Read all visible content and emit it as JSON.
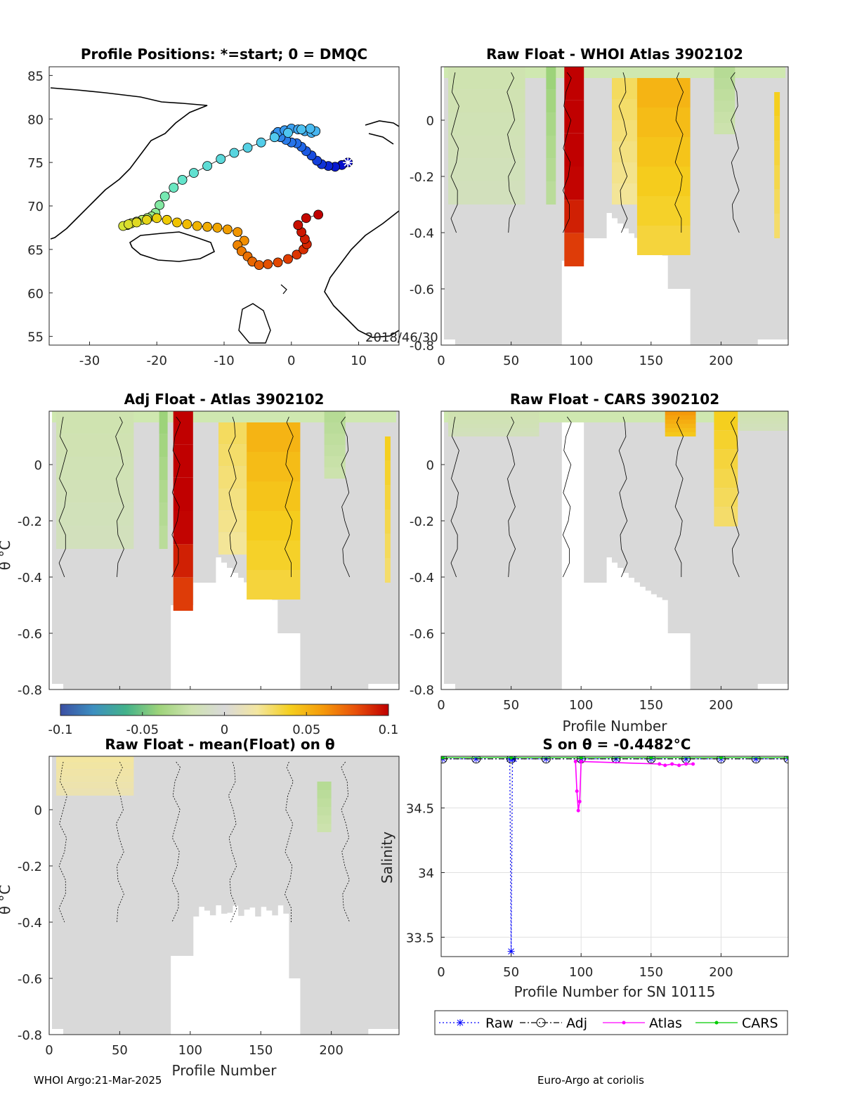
{
  "footer": {
    "left": "WHOI Argo:21-Mar-2025",
    "right": "Euro-Argo at coriolis"
  },
  "chart_data": [
    {
      "id": "map",
      "type": "scatter",
      "title": "Profile Positions: *=start; 0 = DMQC",
      "xlabel": "",
      "ylabel": "",
      "xlim": [
        -36,
        16
      ],
      "ylim": [
        54,
        86
      ],
      "xticks": [
        -30,
        -20,
        -10,
        0,
        10
      ],
      "yticks": [
        55,
        60,
        65,
        70,
        75,
        80,
        85
      ],
      "annotation": "2018/46/30",
      "start_marker": [
        8.4,
        75.0
      ],
      "track": {
        "lon": [
          8.4,
          7.5,
          6.5,
          5.5,
          4.5,
          3.8,
          3.0,
          2.2,
          1.5,
          0.8,
          0.0,
          -0.8,
          -1.6,
          -2.4,
          -2.0,
          -1.0,
          0.0,
          1.0,
          2.0,
          3.0,
          3.6,
          2.8,
          1.5,
          -0.5,
          -2.5,
          -4.5,
          -6.5,
          -8.5,
          -10.5,
          -12.5,
          -14.5,
          -16.2,
          -17.5,
          -18.8,
          -19.6,
          -20.2,
          -20.8,
          -21.4,
          -22.2,
          -23.0,
          -23.8,
          -24.4,
          -25.0,
          -24.2,
          -23.0,
          -21.5,
          -20.0,
          -18.5,
          -17.0,
          -15.5,
          -14.0,
          -12.5,
          -11.0,
          -9.5,
          -8.0,
          -7.0,
          -8.0,
          -7.4,
          -6.5,
          -5.8,
          -4.8,
          -3.5,
          -2.0,
          -0.5,
          0.8,
          1.8,
          2.3,
          2.0,
          1.5,
          1.0,
          2.2,
          4.0
        ],
        "lat": [
          75.0,
          74.7,
          74.5,
          74.6,
          74.8,
          75.2,
          75.8,
          76.3,
          76.8,
          77.2,
          77.3,
          77.6,
          77.9,
          78.2,
          78.5,
          78.7,
          78.9,
          78.8,
          78.6,
          78.4,
          78.6,
          78.9,
          78.8,
          78.4,
          77.9,
          77.3,
          76.7,
          76.1,
          75.4,
          74.6,
          73.8,
          73.0,
          72.1,
          71.1,
          70.1,
          69.2,
          68.8,
          68.6,
          68.4,
          68.2,
          68.0,
          67.8,
          67.7,
          67.9,
          68.1,
          68.4,
          68.6,
          68.4,
          68.1,
          67.9,
          67.7,
          67.6,
          67.5,
          67.3,
          67.0,
          66.0,
          65.5,
          64.8,
          64.2,
          63.6,
          63.2,
          63.3,
          63.5,
          63.9,
          64.4,
          65.0,
          65.6,
          66.2,
          67.0,
          67.8,
          68.6,
          69.0
        ]
      }
    },
    {
      "id": "raw-whoi",
      "type": "heatmap",
      "title": "Raw Float - WHOI Atlas  3902102",
      "xlabel": "",
      "ylabel": "",
      "xlim": [
        0,
        248
      ],
      "ylim": [
        -0.8,
        0.19
      ],
      "xticks": [
        0,
        50,
        100,
        150,
        200
      ],
      "yticks": [
        0,
        -0.2,
        -0.4,
        -0.6,
        -0.8
      ],
      "anomalies": [
        {
          "x": [
            88,
            102
          ],
          "top": 0.19,
          "bottom": -0.52,
          "value": 0.12
        },
        {
          "x": [
            122,
            140
          ],
          "top": 0.15,
          "bottom": -0.3,
          "value": 0.03
        },
        {
          "x": [
            140,
            178
          ],
          "top": 0.15,
          "bottom": -0.48,
          "value": 0.05
        },
        {
          "x": [
            5,
            60
          ],
          "top": 0.19,
          "bottom": -0.3,
          "value": -0.02
        },
        {
          "x": [
            75,
            82
          ],
          "top": 0.19,
          "bottom": -0.3,
          "value": -0.04
        },
        {
          "x": [
            195,
            210
          ],
          "top": 0.19,
          "bottom": -0.05,
          "value": -0.03
        },
        {
          "x": [
            238,
            242
          ],
          "top": 0.1,
          "bottom": -0.42,
          "value": 0.04
        }
      ]
    },
    {
      "id": "adj-atlas",
      "type": "heatmap",
      "title": "Adj Float - Atlas  3902102",
      "xlabel": "",
      "ylabel": "θ °C",
      "xlim": [
        0,
        248
      ],
      "ylim": [
        -0.8,
        0.19
      ],
      "xticks": [],
      "yticks": [
        0,
        -0.2,
        -0.4,
        -0.6,
        -0.8
      ],
      "anomalies": [
        {
          "x": [
            88,
            102
          ],
          "top": 0.19,
          "bottom": -0.52,
          "value": 0.12
        },
        {
          "x": [
            120,
            140
          ],
          "top": 0.15,
          "bottom": -0.32,
          "value": 0.03
        },
        {
          "x": [
            140,
            178
          ],
          "top": 0.15,
          "bottom": -0.48,
          "value": 0.05
        },
        {
          "x": [
            5,
            60
          ],
          "top": 0.19,
          "bottom": -0.3,
          "value": -0.02
        },
        {
          "x": [
            78,
            84
          ],
          "top": 0.19,
          "bottom": -0.3,
          "value": -0.04
        },
        {
          "x": [
            195,
            210
          ],
          "top": 0.19,
          "bottom": -0.05,
          "value": -0.03
        },
        {
          "x": [
            238,
            242
          ],
          "top": 0.1,
          "bottom": -0.42,
          "value": 0.04
        }
      ]
    },
    {
      "id": "raw-cars",
      "type": "heatmap",
      "title": "Raw Float - CARS  3902102",
      "xlabel": "Profile Number",
      "ylabel": "",
      "xlim": [
        0,
        248
      ],
      "ylim": [
        -0.8,
        0.19
      ],
      "xticks": [
        0,
        50,
        100,
        150,
        200
      ],
      "yticks": [
        0,
        -0.2,
        -0.4,
        -0.6,
        -0.8
      ],
      "anomalies": [
        {
          "x": [
            160,
            182
          ],
          "top": 0.19,
          "bottom": 0.1,
          "value": 0.06
        },
        {
          "x": [
            195,
            212
          ],
          "top": 0.19,
          "bottom": -0.22,
          "value": 0.04
        },
        {
          "x": [
            5,
            70
          ],
          "top": 0.19,
          "bottom": 0.1,
          "value": -0.02
        },
        {
          "x": [
            213,
            248
          ],
          "top": 0.19,
          "bottom": 0.12,
          "value": -0.02
        }
      ]
    },
    {
      "id": "raw-mean",
      "type": "heatmap",
      "title": "Raw Float - mean(Float) on θ",
      "xlabel": "Profile Number",
      "ylabel": "θ °C",
      "xlim": [
        0,
        248
      ],
      "ylim": [
        -0.8,
        0.19
      ],
      "xticks": [
        0,
        50,
        100,
        150,
        200
      ],
      "yticks": [
        0,
        -0.2,
        -0.4,
        -0.6,
        -0.8
      ],
      "anomalies": [
        {
          "x": [
            5,
            60
          ],
          "top": 0.19,
          "bottom": 0.05,
          "value": 0.02
        },
        {
          "x": [
            190,
            200
          ],
          "top": 0.1,
          "bottom": -0.08,
          "value": -0.03
        }
      ]
    },
    {
      "id": "salinity",
      "type": "line",
      "title": "S on θ = -0.4482°C",
      "xlabel": "Profile Number for SN 10115",
      "ylabel": "Salinity",
      "xlim": [
        0,
        248
      ],
      "ylim": [
        33.35,
        34.9
      ],
      "xticks": [
        0,
        50,
        100,
        150,
        200
      ],
      "yticks": [
        33.5,
        34,
        34.5
      ],
      "grid": true,
      "series": [
        {
          "name": "Raw",
          "color": "#0000ff",
          "x": [
            1,
            25,
            49,
            50,
            51,
            52,
            75,
            100,
            125,
            150,
            175,
            200,
            225,
            248
          ],
          "y": [
            34.88,
            34.88,
            34.88,
            33.39,
            34.88,
            34.88,
            34.88,
            34.88,
            34.88,
            34.88,
            34.88,
            34.88,
            34.88,
            34.88
          ]
        },
        {
          "name": "Adj",
          "color": "#000000",
          "x": [
            1,
            25,
            50,
            75,
            100,
            125,
            150,
            175,
            200,
            225,
            248
          ],
          "y": [
            34.88,
            34.88,
            34.88,
            34.88,
            34.88,
            34.88,
            34.88,
            34.88,
            34.88,
            34.88,
            34.88
          ]
        },
        {
          "name": "Atlas",
          "color": "#ff00ff",
          "x": [
            96,
            97,
            98,
            99,
            100,
            156,
            160,
            165,
            170,
            175,
            180
          ],
          "y": [
            34.86,
            34.63,
            34.48,
            34.55,
            34.86,
            34.84,
            34.83,
            34.84,
            34.83,
            34.84,
            34.84
          ]
        },
        {
          "name": "CARS",
          "color": "#00cc00",
          "x": [
            1,
            50,
            100,
            150,
            200,
            248
          ],
          "y": [
            34.89,
            34.89,
            34.89,
            34.89,
            34.89,
            34.89
          ]
        }
      ]
    }
  ],
  "colorbar": {
    "ticks": [
      "-0.1",
      "-0.05",
      "0",
      "0.05",
      "0.1"
    ],
    "colors": [
      "#3b4fa3",
      "#3d8fc0",
      "#43b28a",
      "#9dd37a",
      "#cfe3b0",
      "#d9d9d9",
      "#f3e6a0",
      "#f5cf1e",
      "#f59a0a",
      "#e8500a",
      "#c00000"
    ]
  }
}
